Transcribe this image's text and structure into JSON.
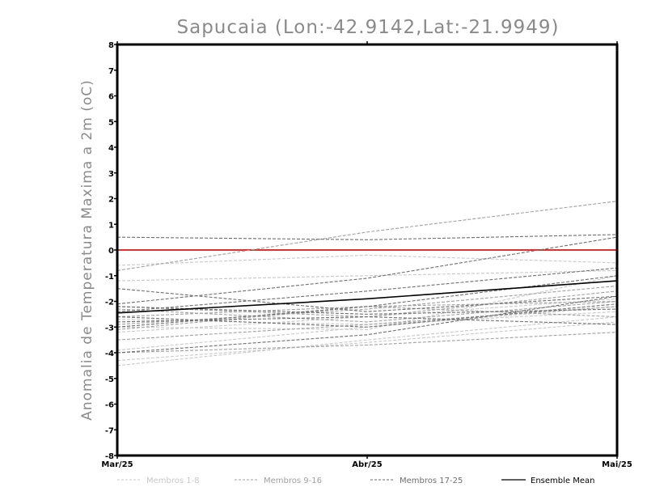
{
  "chart_data": {
    "type": "line",
    "title": "Sapucaia (Lon:-42.9142,Lat:-21.9949)",
    "xlabel": "",
    "ylabel": "Anomalia de Temperatura Maxima a 2m (oC)",
    "categories": [
      "Mar/25",
      "Abr/25",
      "Mai/25"
    ],
    "ylim": [
      -8,
      8
    ],
    "yticks": [
      8,
      7,
      6,
      5,
      4,
      3,
      2,
      1,
      0,
      -1,
      -2,
      -3,
      -4,
      -5,
      -6,
      -7,
      -8
    ],
    "ytick_labels": [
      "8",
      "7",
      "6",
      "5",
      "4",
      "3",
      "2",
      "1",
      "0",
      "-1",
      "-2",
      "-3",
      "-4",
      "-5",
      "-6",
      "-7",
      "-8"
    ],
    "zero_line_color": "#e03030",
    "legend_position": "bottom",
    "groups": [
      {
        "name": "Membros 1-8",
        "color": "#c8c8c8",
        "series": [
          {
            "values": [
              -4.5,
              -3.5,
              -2.6
            ]
          },
          {
            "values": [
              -4.3,
              -3.6,
              -2.8
            ]
          },
          {
            "values": [
              -3.9,
              -3.0,
              -2.2
            ]
          },
          {
            "values": [
              -3.2,
              -2.6,
              -1.9
            ]
          },
          {
            "values": [
              -2.7,
              -2.9,
              -2.4
            ]
          },
          {
            "values": [
              -1.2,
              -1.0,
              -0.8
            ]
          },
          {
            "values": [
              -0.6,
              -0.2,
              -0.5
            ]
          },
          {
            "values": [
              -3.0,
              -3.1,
              -1.0
            ]
          }
        ]
      },
      {
        "name": "Membros 9-16",
        "color": "#a0a0a0",
        "series": [
          {
            "values": [
              -0.8,
              0.7,
              1.9
            ]
          },
          {
            "values": [
              -2.9,
              -2.3,
              -1.4
            ]
          },
          {
            "values": [
              -2.6,
              -2.2,
              -2.0
            ]
          },
          {
            "values": [
              -2.2,
              -2.6,
              -1.6
            ]
          },
          {
            "values": [
              -3.1,
              -2.2,
              -2.6
            ]
          },
          {
            "values": [
              -3.5,
              -2.9,
              -2.2
            ]
          },
          {
            "values": [
              -4.0,
              -3.7,
              -3.2
            ]
          },
          {
            "values": [
              -2.3,
              -2.8,
              -2.0
            ]
          }
        ]
      },
      {
        "name": "Membros 17-25",
        "color": "#6e6e6e",
        "series": [
          {
            "values": [
              0.5,
              0.4,
              0.6
            ]
          },
          {
            "values": [
              -1.5,
              -2.4,
              -1.8
            ]
          },
          {
            "values": [
              -2.1,
              -1.1,
              0.5
            ]
          },
          {
            "values": [
              -2.6,
              -3.0,
              -2.1
            ]
          },
          {
            "values": [
              -3.0,
              -2.2,
              -1.0
            ]
          },
          {
            "values": [
              -4.0,
              -3.3,
              -1.8
            ]
          },
          {
            "values": [
              -2.4,
              -1.6,
              -0.7
            ]
          },
          {
            "values": [
              -2.8,
              -2.6,
              -2.9
            ]
          },
          {
            "values": [
              -2.2,
              -2.5,
              -2.3
            ]
          }
        ]
      },
      {
        "name": "Ensemble Mean",
        "color": "#000000",
        "series": [
          {
            "values": [
              -2.45,
              -1.9,
              -1.2
            ]
          }
        ]
      }
    ]
  }
}
